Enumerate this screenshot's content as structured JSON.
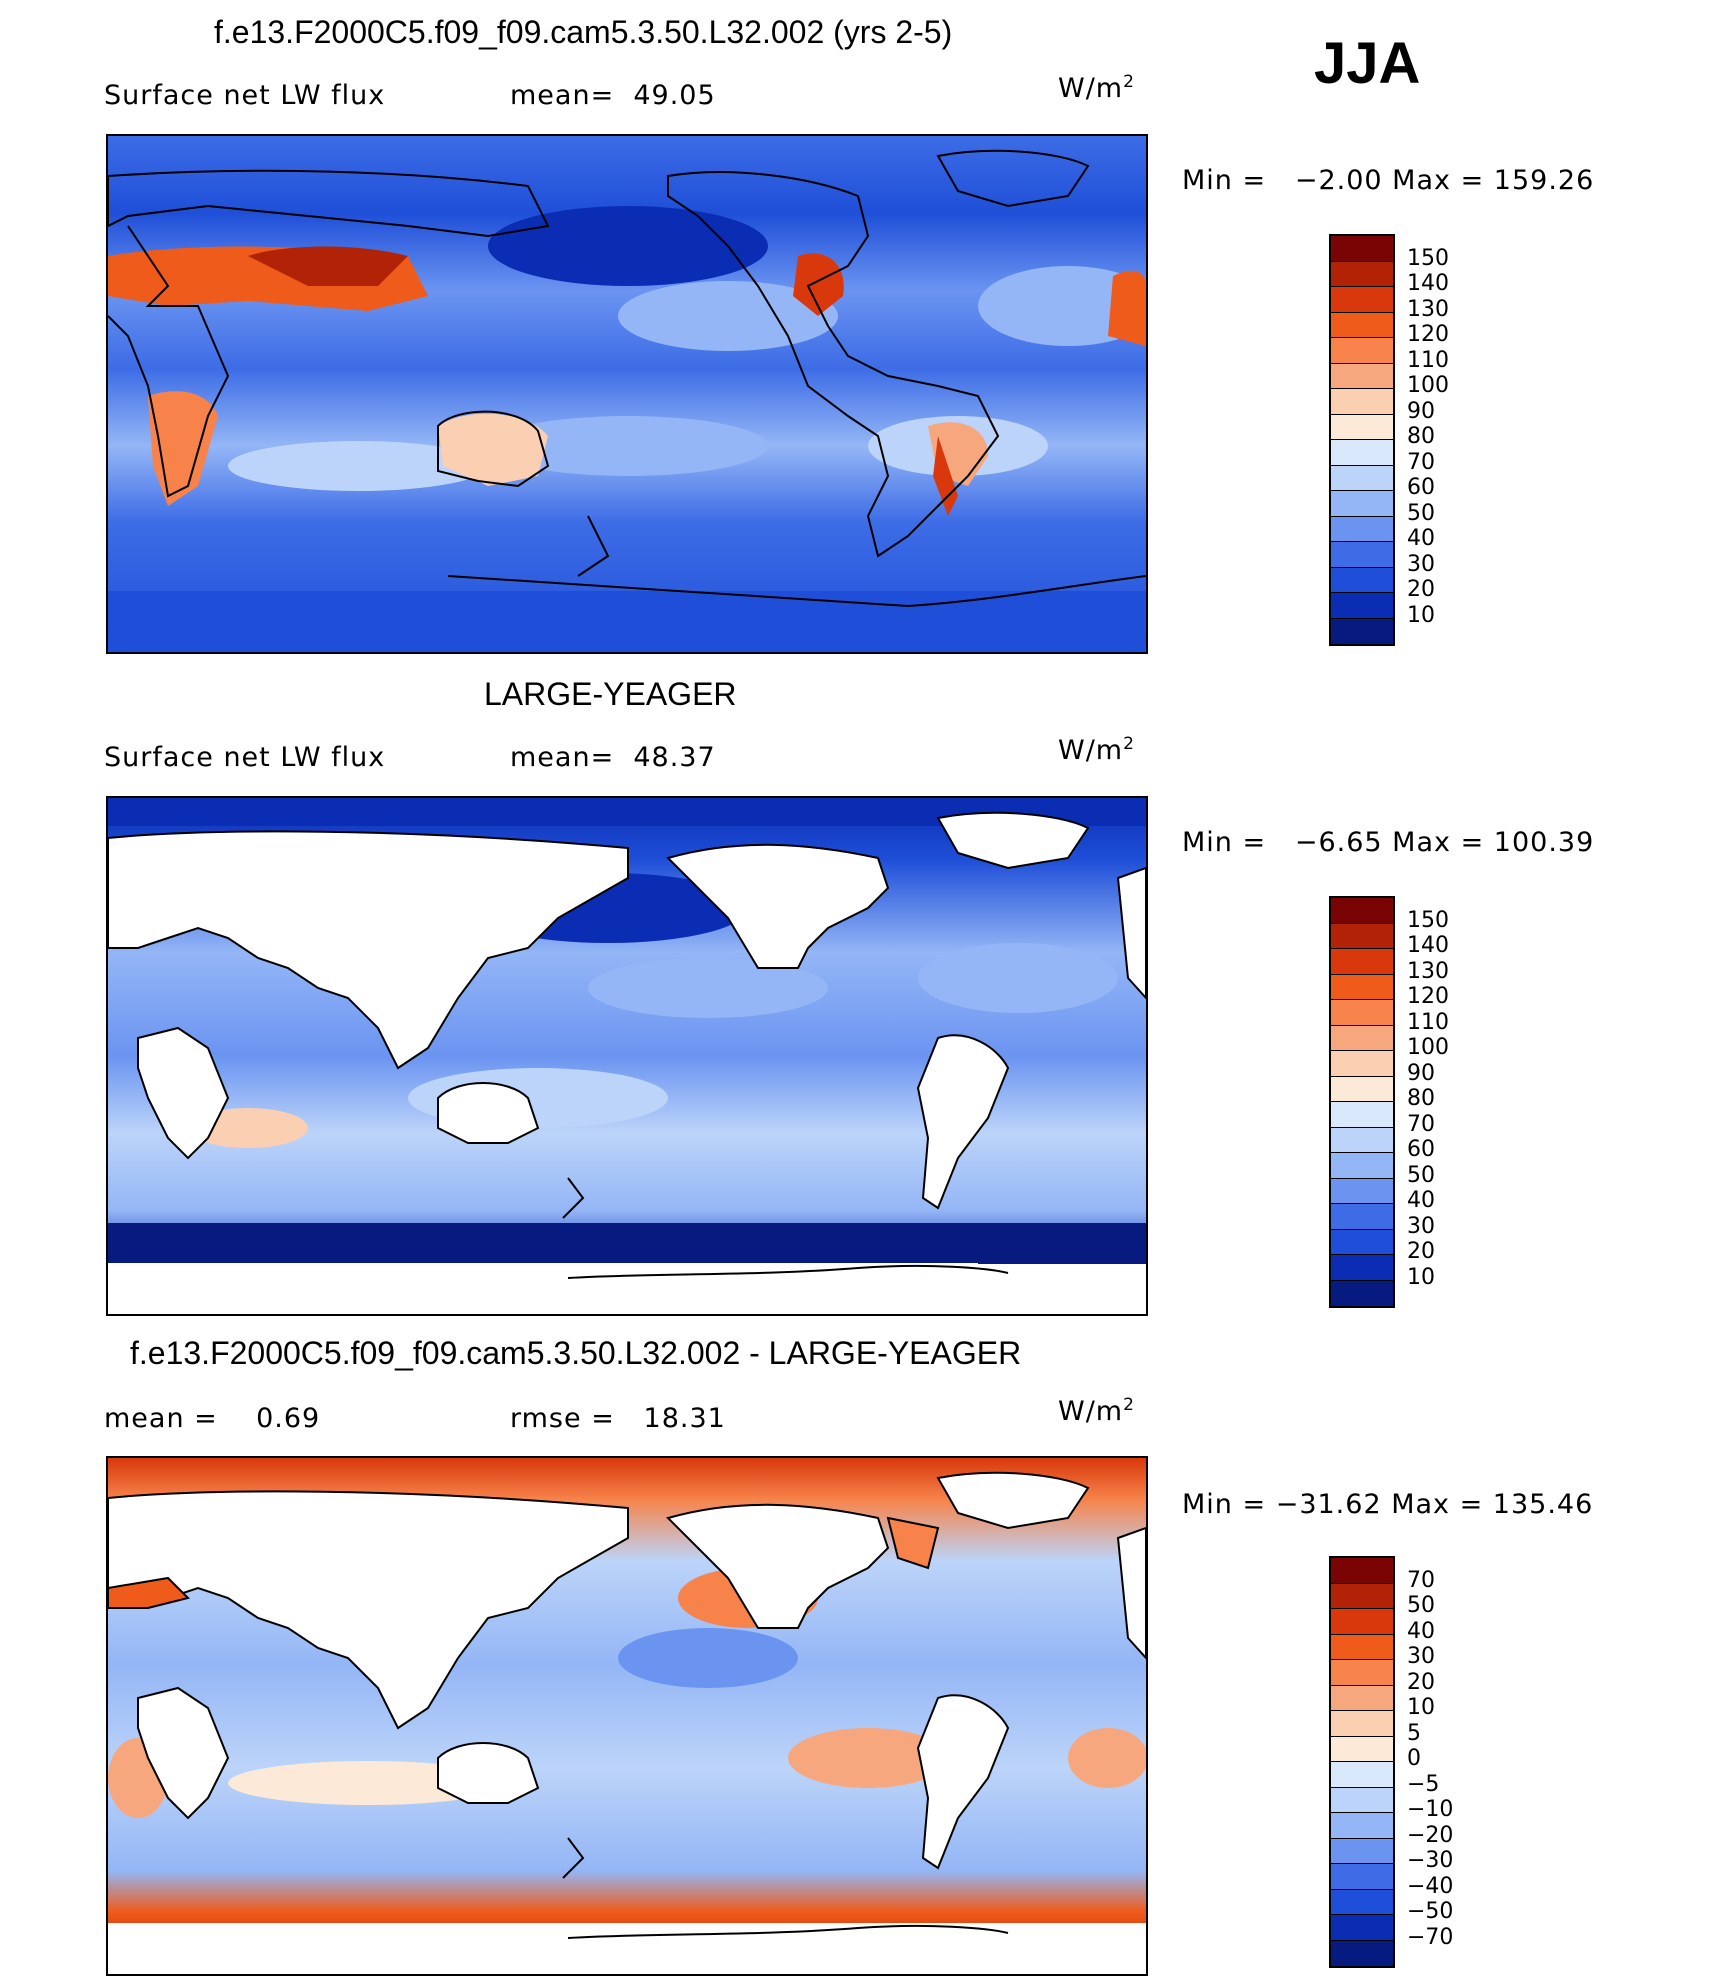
{
  "season": "JJA",
  "panels": [
    {
      "title": "f.e13.F2000C5.f09_f09.cam5.3.50.L32.002 (yrs 2-5)",
      "left_label": "Surface net LW flux",
      "center_label": "mean=  49.05",
      "units_base": "W/m",
      "units_exp": "2",
      "minmax": "Min =   −2.00 Max = 159.26",
      "levels": [
        "150",
        "140",
        "130",
        "120",
        "110",
        "100",
        "90",
        "80",
        "70",
        "60",
        "50",
        "40",
        "30",
        "20",
        "10"
      ],
      "colors": [
        "#7a0403",
        "#b22206",
        "#d8380b",
        "#ef5b1b",
        "#f7834a",
        "#f7a77e",
        "#fbcfb2",
        "#fde9d8",
        "#d9e8fb",
        "#bcd4f9",
        "#94b6f6",
        "#6b94f1",
        "#3d6ce6",
        "#1f4fd8",
        "#0b2db3",
        "#071a80"
      ]
    },
    {
      "title": "LARGE-YEAGER",
      "left_label": "Surface net LW flux",
      "center_label": "mean=  48.37",
      "units_base": "W/m",
      "units_exp": "2",
      "minmax": "Min =   −6.65 Max = 100.39",
      "levels": [
        "150",
        "140",
        "130",
        "120",
        "110",
        "100",
        "90",
        "80",
        "70",
        "60",
        "50",
        "40",
        "30",
        "20",
        "10"
      ],
      "colors": [
        "#7a0403",
        "#b22206",
        "#d8380b",
        "#ef5b1b",
        "#f7834a",
        "#f7a77e",
        "#fbcfb2",
        "#fde9d8",
        "#d9e8fb",
        "#bcd4f9",
        "#94b6f6",
        "#6b94f1",
        "#3d6ce6",
        "#1f4fd8",
        "#0b2db3",
        "#071a80"
      ]
    },
    {
      "title": "f.e13.F2000C5.f09_f09.cam5.3.50.L32.002 - LARGE-YEAGER",
      "left_label": "mean =    0.69",
      "center_label": "rmse =   18.31",
      "units_base": "W/m",
      "units_exp": "2",
      "minmax": "Min = −31.62 Max = 135.46",
      "levels": [
        "70",
        "50",
        "40",
        "30",
        "20",
        "10",
        "5",
        "0",
        "−5",
        "−10",
        "−20",
        "−30",
        "−40",
        "−50",
        "−70"
      ],
      "colors": [
        "#7a0403",
        "#b22206",
        "#d8380b",
        "#ef5b1b",
        "#f7834a",
        "#f7a77e",
        "#fbcfb2",
        "#fde9d8",
        "#d9e8fb",
        "#bcd4f9",
        "#94b6f6",
        "#6b94f1",
        "#3d6ce6",
        "#1f4fd8",
        "#0b2db3",
        "#071a80"
      ]
    }
  ]
}
